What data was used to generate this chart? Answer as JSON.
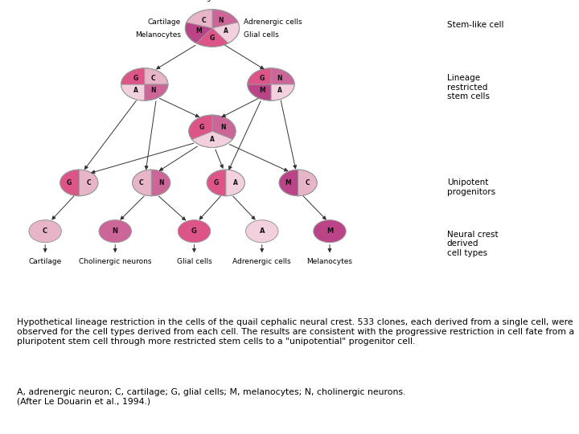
{
  "background": "#ffffff",
  "caption_line1": "Hypothetical lineage restriction in the cells of the quail cephalic neural crest. 533 clones, each derived from a single cell, were",
  "caption_line2": "observed for the cell types derived from each cell. The results are consistent with the progressive restriction in cell fate from a",
  "caption_line3": "pluripotent stem cell through more restricted stem cells to a \"unipotential\" progenitor cell.",
  "caption_line5": "A, adrenergic neuron; C, cartilage; G, glial cells; M, melanocytes; N, cholinergic neurons.",
  "caption_line6": "(After Le Douarin et al., 1994.)",
  "cell_colors": {
    "N": "#cc6699",
    "C": "#e8b4c8",
    "A": "#f2d0de",
    "M": "#bb4488",
    "G": "#dd5588",
    "blank": "#f5dce8"
  },
  "pie_border_color": "#999999",
  "arrow_color": "#333333",
  "font_size_label": 6.5,
  "font_size_side": 7.5,
  "font_size_caption": 7.8,
  "font_size_cell": 5.5
}
